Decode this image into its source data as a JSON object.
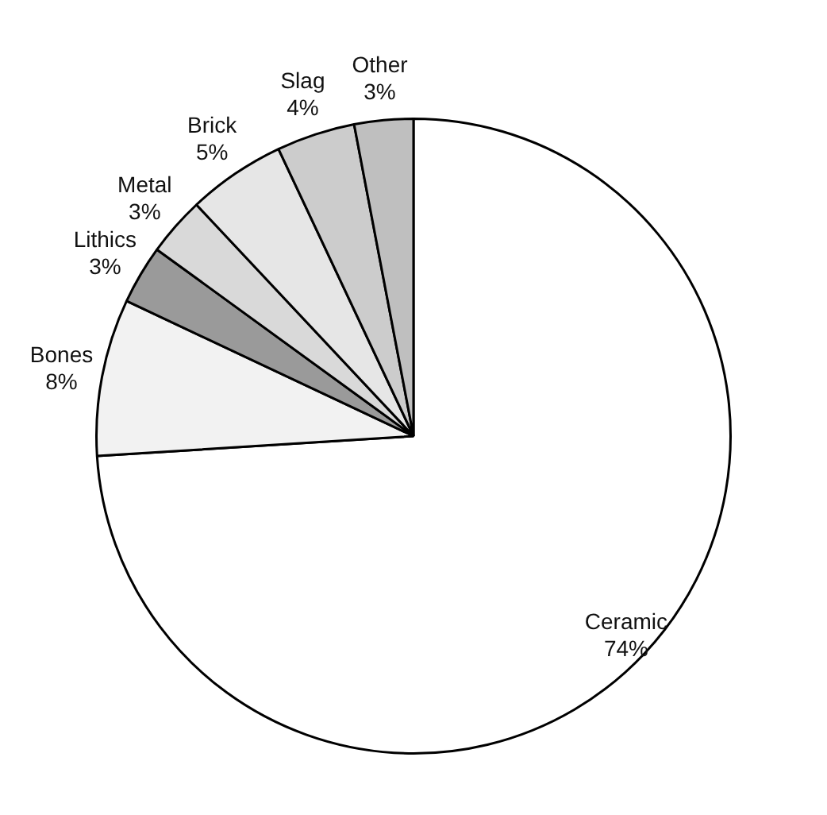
{
  "chart_data": {
    "type": "pie",
    "categories": [
      "Ceramic",
      "Bones",
      "Lithics",
      "Metal",
      "Brick",
      "Slag",
      "Other"
    ],
    "values": [
      74,
      8,
      3,
      3,
      5,
      4,
      3
    ],
    "value_labels": [
      "74%",
      "8%",
      "3%",
      "3%",
      "5%",
      "4%",
      "3%"
    ],
    "colors": [
      "#ffffff",
      "#f2f2f2",
      "#9a9a9a",
      "#d9d9d9",
      "#e6e6e6",
      "#cccccc",
      "#bfbfbf"
    ],
    "legend": false
  }
}
